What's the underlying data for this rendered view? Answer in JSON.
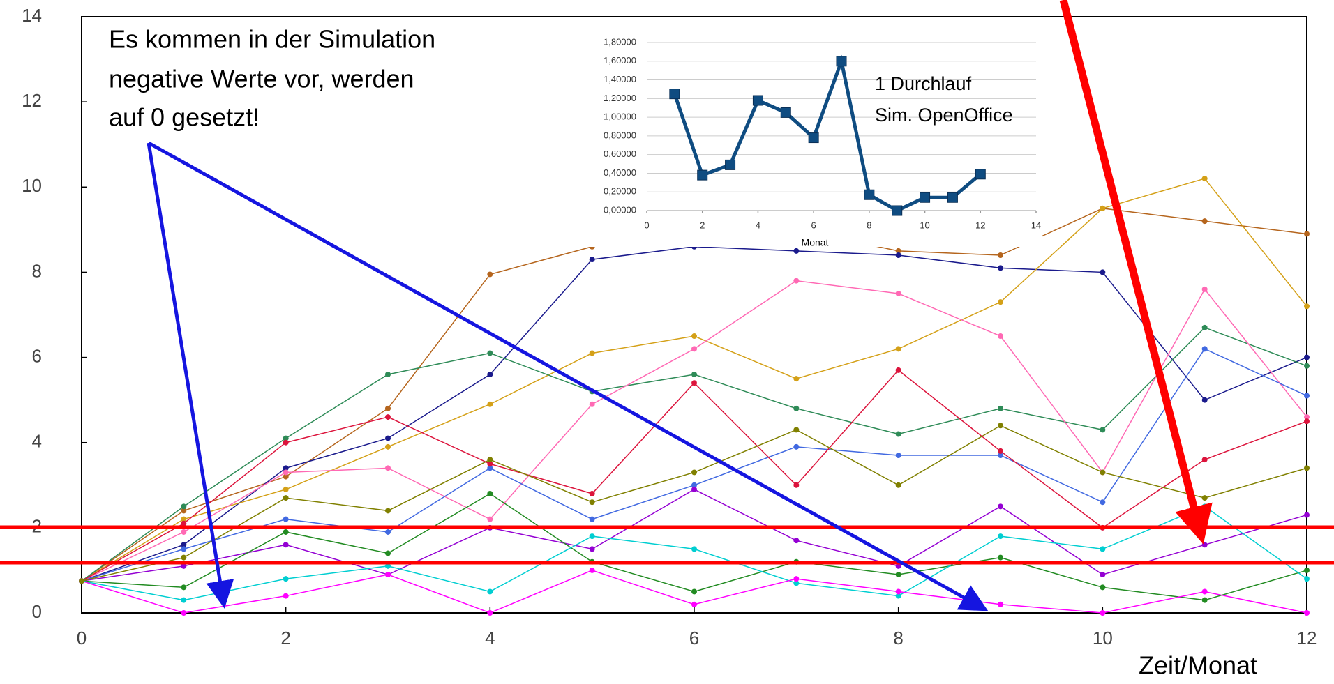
{
  "chart_data": [
    {
      "type": "line",
      "annotation": [
        "Es kommen in der Simulation",
        "negative Werte vor, werden",
        "auf 0 gesetzt!"
      ],
      "x_label": "Zeit/Monat",
      "x": [
        0,
        1,
        2,
        3,
        4,
        5,
        6,
        7,
        8,
        9,
        10,
        11,
        12
      ],
      "xlim": [
        0,
        12
      ],
      "xticks": [
        0,
        2,
        4,
        6,
        8,
        10,
        12
      ],
      "ylim": [
        0,
        14
      ],
      "yticks": [
        0,
        2,
        4,
        6,
        8,
        10,
        12,
        14
      ],
      "grid": false,
      "marker": "circle",
      "series": [
        {
          "color": "#b5651d",
          "values": [
            0.75,
            2.4,
            3.2,
            4.8,
            7.95,
            8.6,
            9.2,
            9.0,
            8.5,
            8.4,
            9.5,
            9.2,
            8.9
          ]
        },
        {
          "color": "#1a1a8c",
          "values": [
            0.75,
            1.6,
            3.4,
            4.1,
            5.6,
            8.3,
            8.6,
            8.5,
            8.4,
            8.1,
            8.0,
            5.0,
            6.0
          ]
        },
        {
          "color": "#d4a017",
          "values": [
            0.75,
            2.2,
            2.9,
            3.9,
            4.9,
            6.1,
            6.5,
            5.5,
            6.2,
            7.3,
            9.5,
            10.2,
            7.2
          ]
        },
        {
          "color": "#2e8b57",
          "values": [
            0.75,
            2.5,
            4.1,
            5.6,
            6.1,
            5.2,
            5.6,
            4.8,
            4.2,
            4.8,
            4.3,
            6.7,
            5.8
          ]
        },
        {
          "color": "#ff69b4",
          "values": [
            0.75,
            1.9,
            3.3,
            3.4,
            2.2,
            4.9,
            6.2,
            7.8,
            7.5,
            6.5,
            3.3,
            7.6,
            4.6
          ]
        },
        {
          "color": "#4169e1",
          "values": [
            0.75,
            1.5,
            2.2,
            1.9,
            3.4,
            2.2,
            3.0,
            3.9,
            3.7,
            3.7,
            2.6,
            6.2,
            5.1
          ]
        },
        {
          "color": "#dc143c",
          "values": [
            0.75,
            2.1,
            4.0,
            4.6,
            3.5,
            2.8,
            5.4,
            3.0,
            5.7,
            3.8,
            2.0,
            3.6,
            4.5
          ]
        },
        {
          "color": "#9400d3",
          "values": [
            0.75,
            1.1,
            1.6,
            0.9,
            2.0,
            1.5,
            2.9,
            1.7,
            1.1,
            2.5,
            0.9,
            1.6,
            2.3
          ]
        },
        {
          "color": "#228b22",
          "values": [
            0.75,
            0.6,
            1.9,
            1.4,
            2.8,
            1.2,
            0.5,
            1.2,
            0.9,
            1.3,
            0.6,
            0.3,
            1.0
          ]
        },
        {
          "color": "#00ced1",
          "values": [
            0.75,
            0.3,
            0.8,
            1.1,
            0.5,
            1.8,
            1.5,
            0.7,
            0.4,
            1.8,
            1.5,
            2.5,
            0.8
          ]
        },
        {
          "color": "#ff00ff",
          "values": [
            0.75,
            0,
            0.4,
            0.9,
            0,
            1.0,
            0.2,
            0.8,
            0.5,
            0.2,
            0,
            0.5,
            0
          ]
        },
        {
          "color": "#808000",
          "values": [
            0.75,
            1.3,
            2.7,
            2.4,
            3.6,
            2.6,
            3.3,
            4.3,
            3.0,
            4.4,
            3.3,
            2.7,
            3.4
          ]
        }
      ]
    },
    {
      "type": "line",
      "annotation": [
        "1 Durchlauf",
        "Sim. OpenOffice"
      ],
      "x_label": "Monat",
      "x": [
        1,
        2,
        3,
        4,
        5,
        6,
        7,
        8,
        9,
        10,
        11,
        12
      ],
      "xlim": [
        0,
        14
      ],
      "xticks": [
        0,
        2,
        4,
        6,
        8,
        10,
        12,
        14
      ],
      "ylim": [
        0,
        1.8
      ],
      "yticks": [
        {
          "value": 0,
          "label": "0,00000"
        },
        {
          "value": 0.2,
          "label": "0,20000"
        },
        {
          "value": 0.4,
          "label": "0,40000"
        },
        {
          "value": 0.6,
          "label": "0,60000"
        },
        {
          "value": 0.8,
          "label": "0,80000"
        },
        {
          "value": 1.0,
          "label": "1,00000"
        },
        {
          "value": 1.2,
          "label": "1,20000"
        },
        {
          "value": 1.4,
          "label": "1,40000"
        },
        {
          "value": 1.6,
          "label": "1,60000"
        },
        {
          "value": 1.8,
          "label": "1,80000"
        }
      ],
      "grid": true,
      "marker": "square",
      "series": [
        {
          "color": "#0f4c81",
          "values": [
            1.25,
            0.38,
            0.49,
            1.18,
            1.05,
            0.78,
            1.6,
            0.17,
            0.0,
            0.14,
            0.14,
            0.39
          ]
        }
      ]
    }
  ]
}
